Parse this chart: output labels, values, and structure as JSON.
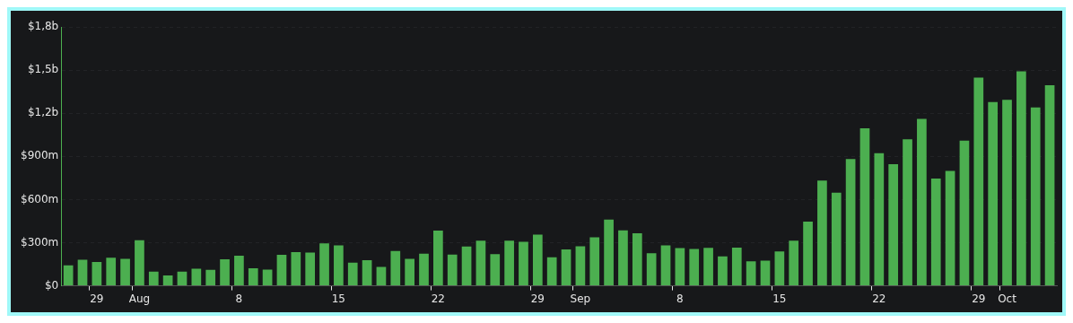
{
  "chart_data": {
    "type": "bar",
    "categories": [
      null,
      null,
      "29",
      null,
      null,
      "Aug",
      null,
      null,
      null,
      null,
      null,
      null,
      "8",
      null,
      null,
      null,
      null,
      null,
      null,
      "15",
      null,
      null,
      null,
      null,
      null,
      null,
      "22",
      null,
      null,
      null,
      null,
      null,
      null,
      "29",
      null,
      null,
      "Sep",
      null,
      null,
      null,
      null,
      null,
      null,
      "8",
      null,
      null,
      null,
      null,
      null,
      null,
      "15",
      null,
      null,
      null,
      null,
      null,
      null,
      "22",
      null,
      null,
      null,
      null,
      null,
      null,
      "29",
      null,
      "Oct",
      null,
      null,
      null
    ],
    "values": [
      143000000,
      182000000,
      166000000,
      195000000,
      187000000,
      317000000,
      99000000,
      73000000,
      99000000,
      119000000,
      111000000,
      184000000,
      210000000,
      122000000,
      113000000,
      216000000,
      235000000,
      231000000,
      296000000,
      281000000,
      161000000,
      178000000,
      132000000,
      243000000,
      187000000,
      224000000,
      384000000,
      218000000,
      273000000,
      314000000,
      220000000,
      314000000,
      306000000,
      356000000,
      199000000,
      254000000,
      275000000,
      338000000,
      461000000,
      386000000,
      365000000,
      226000000,
      281000000,
      262000000,
      256000000,
      264000000,
      205000000,
      266000000,
      170000000,
      176000000,
      239000000,
      314000000,
      447000000,
      732000000,
      648000000,
      881000000,
      1096000000,
      922000000,
      845000000,
      1019000000,
      1161000000,
      746000000,
      799000000,
      1010000000,
      1447000000,
      1277000000,
      1294000000,
      1491000000,
      1241000000,
      1394000000
    ],
    "color": "#4caf50",
    "ylim": [
      0,
      1800000000
    ],
    "yticks": [
      {
        "value": 0,
        "label": "$0"
      },
      {
        "value": 300000000,
        "label": "$300m"
      },
      {
        "value": 600000000,
        "label": "$600m"
      },
      {
        "value": 900000000,
        "label": "$900m"
      },
      {
        "value": 1200000000,
        "label": "$1,2b"
      },
      {
        "value": 1500000000,
        "label": "$1,5b"
      },
      {
        "value": 1800000000,
        "label": "$1,8b"
      }
    ],
    "grid": "y"
  }
}
